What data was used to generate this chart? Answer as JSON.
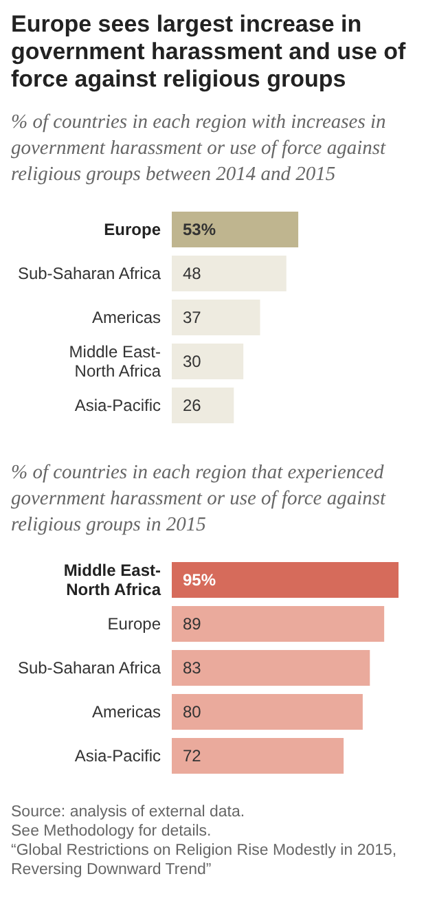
{
  "chart_data": [
    {
      "type": "bar",
      "orientation": "horizontal",
      "tick_labels": "y",
      "title": "Europe sees largest increase in government harassment and use of force against religious groups",
      "subtitle": "% of countries in each region with increases in government harassment or use of force against religious groups between 2014 and 2015",
      "categories": [
        "Europe",
        "Sub-Saharan Africa",
        "Americas",
        "Middle East-\nNorth Africa",
        "Asia-Pacific"
      ],
      "values": [
        53,
        48,
        37,
        30,
        26
      ],
      "colors": [
        "#bfb58f",
        "#eeebe0",
        "#eeebe0",
        "#eeebe0",
        "#eeebe0"
      ],
      "value_labels": [
        "53%",
        "48",
        "37",
        "30",
        "26"
      ]
    },
    {
      "type": "bar",
      "orientation": "horizontal",
      "tick_labels": "y",
      "subtitle": "% of countries in each region that experienced government harassment or use of force against religious groups in 2015",
      "categories": [
        "Middle East-\nNorth Africa",
        "Europe",
        "Sub-Saharan Africa",
        "Americas",
        "Asia-Pacific"
      ],
      "values": [
        95,
        89,
        83,
        80,
        72
      ],
      "colors": [
        "#d66b5b",
        "#eaaa9c",
        "#eaaa9c",
        "#eaaa9c",
        "#eaaa9c"
      ],
      "value_labels": [
        "95%",
        "89",
        "83",
        "80",
        "72"
      ],
      "annotations": [
        "Source: analysis of external data.\nSee Methodology for details.",
        "“Global Restrictions on Religion Rise Modestly in 2015, Reversing Downward Trend”"
      ]
    }
  ]
}
